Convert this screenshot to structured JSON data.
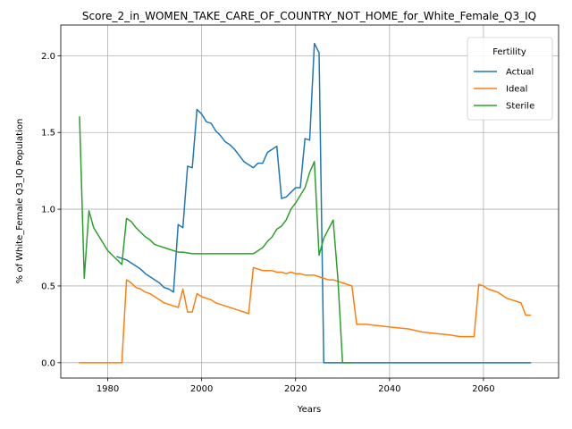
{
  "chart_data": {
    "type": "line",
    "title": "Score_2_in_WOMEN_TAKE_CARE_OF_COUNTRY_NOT_HOME_for_White_Female_Q3_IQ",
    "xlabel": "Years",
    "ylabel": "% of White_Female Q3_IQ Population",
    "xlim": [
      1970,
      2076
    ],
    "ylim": [
      -0.1,
      2.2
    ],
    "xticks": [
      1980,
      2000,
      2020,
      2040,
      2060
    ],
    "yticks": [
      0.0,
      0.5,
      1.0,
      1.5,
      2.0
    ],
    "xtick_labels": [
      "1980",
      "2000",
      "2020",
      "2040",
      "2060"
    ],
    "ytick_labels": [
      "0.0",
      "0.5",
      "1.0",
      "1.5",
      "2.0"
    ],
    "grid": true,
    "legend": {
      "title": "Fertility",
      "placement": "top-right"
    },
    "series": [
      {
        "name": "Actual",
        "color": "#1f77b4",
        "points": [
          [
            1982,
            0.69
          ],
          [
            1983,
            0.68
          ],
          [
            1984,
            0.67
          ],
          [
            1985,
            0.65
          ],
          [
            1986,
            0.63
          ],
          [
            1987,
            0.61
          ],
          [
            1988,
            0.58
          ],
          [
            1989,
            0.56
          ],
          [
            1990,
            0.54
          ],
          [
            1991,
            0.52
          ],
          [
            1992,
            0.49
          ],
          [
            1993,
            0.48
          ],
          [
            1994,
            0.46
          ],
          [
            1995,
            0.9
          ],
          [
            1996,
            0.88
          ],
          [
            1997,
            1.28
          ],
          [
            1998,
            1.27
          ],
          [
            1999,
            1.65
          ],
          [
            2000,
            1.62
          ],
          [
            2001,
            1.57
          ],
          [
            2002,
            1.56
          ],
          [
            2003,
            1.51
          ],
          [
            2004,
            1.48
          ],
          [
            2005,
            1.44
          ],
          [
            2006,
            1.42
          ],
          [
            2007,
            1.39
          ],
          [
            2008,
            1.35
          ],
          [
            2009,
            1.31
          ],
          [
            2010,
            1.29
          ],
          [
            2011,
            1.27
          ],
          [
            2012,
            1.3
          ],
          [
            2013,
            1.3
          ],
          [
            2014,
            1.37
          ],
          [
            2015,
            1.39
          ],
          [
            2016,
            1.41
          ],
          [
            2017,
            1.07
          ],
          [
            2018,
            1.08
          ],
          [
            2019,
            1.11
          ],
          [
            2020,
            1.14
          ],
          [
            2021,
            1.14
          ],
          [
            2022,
            1.46
          ],
          [
            2023,
            1.45
          ],
          [
            2024,
            2.08
          ],
          [
            2025,
            2.02
          ],
          [
            2026,
            0.0
          ],
          [
            2030,
            0.0
          ],
          [
            2040,
            0.0
          ],
          [
            2050,
            0.0
          ],
          [
            2060,
            0.0
          ],
          [
            2070,
            0.0
          ]
        ]
      },
      {
        "name": "Ideal",
        "color": "#ff7f0e",
        "points": [
          [
            1974,
            0.0
          ],
          [
            1978,
            0.0
          ],
          [
            1983,
            0.0
          ],
          [
            1984,
            0.54
          ],
          [
            1985,
            0.52
          ],
          [
            1986,
            0.49
          ],
          [
            1987,
            0.48
          ],
          [
            1988,
            0.46
          ],
          [
            1989,
            0.45
          ],
          [
            1990,
            0.43
          ],
          [
            1991,
            0.41
          ],
          [
            1992,
            0.39
          ],
          [
            1993,
            0.38
          ],
          [
            1994,
            0.37
          ],
          [
            1995,
            0.36
          ],
          [
            1996,
            0.48
          ],
          [
            1997,
            0.33
          ],
          [
            1998,
            0.33
          ],
          [
            1999,
            0.45
          ],
          [
            2000,
            0.43
          ],
          [
            2001,
            0.42
          ],
          [
            2002,
            0.41
          ],
          [
            2003,
            0.39
          ],
          [
            2004,
            0.38
          ],
          [
            2005,
            0.37
          ],
          [
            2006,
            0.36
          ],
          [
            2007,
            0.35
          ],
          [
            2008,
            0.34
          ],
          [
            2009,
            0.33
          ],
          [
            2010,
            0.32
          ],
          [
            2011,
            0.62
          ],
          [
            2012,
            0.61
          ],
          [
            2013,
            0.6
          ],
          [
            2014,
            0.6
          ],
          [
            2015,
            0.6
          ],
          [
            2016,
            0.59
          ],
          [
            2017,
            0.59
          ],
          [
            2018,
            0.58
          ],
          [
            2019,
            0.59
          ],
          [
            2020,
            0.58
          ],
          [
            2021,
            0.58
          ],
          [
            2022,
            0.57
          ],
          [
            2023,
            0.57
          ],
          [
            2024,
            0.57
          ],
          [
            2025,
            0.56
          ],
          [
            2026,
            0.55
          ],
          [
            2027,
            0.54
          ],
          [
            2028,
            0.54
          ],
          [
            2029,
            0.53
          ],
          [
            2030,
            0.52
          ],
          [
            2031,
            0.51
          ],
          [
            2032,
            0.5
          ],
          [
            2033,
            0.25
          ],
          [
            2035,
            0.25
          ],
          [
            2038,
            0.24
          ],
          [
            2041,
            0.23
          ],
          [
            2044,
            0.22
          ],
          [
            2047,
            0.2
          ],
          [
            2050,
            0.19
          ],
          [
            2053,
            0.18
          ],
          [
            2055,
            0.17
          ],
          [
            2058,
            0.17
          ],
          [
            2059,
            0.51
          ],
          [
            2060,
            0.5
          ],
          [
            2061,
            0.48
          ],
          [
            2062,
            0.47
          ],
          [
            2063,
            0.46
          ],
          [
            2064,
            0.44
          ],
          [
            2065,
            0.42
          ],
          [
            2066,
            0.41
          ],
          [
            2067,
            0.4
          ],
          [
            2068,
            0.39
          ],
          [
            2069,
            0.31
          ],
          [
            2070,
            0.31
          ]
        ]
      },
      {
        "name": "Sterile",
        "color": "#2ca02c",
        "points": [
          [
            1974,
            1.6
          ],
          [
            1975,
            0.55
          ],
          [
            1976,
            0.99
          ],
          [
            1977,
            0.88
          ],
          [
            1978,
            0.83
          ],
          [
            1979,
            0.78
          ],
          [
            1980,
            0.73
          ],
          [
            1981,
            0.7
          ],
          [
            1982,
            0.67
          ],
          [
            1983,
            0.64
          ],
          [
            1984,
            0.94
          ],
          [
            1985,
            0.92
          ],
          [
            1986,
            0.88
          ],
          [
            1987,
            0.85
          ],
          [
            1988,
            0.82
          ],
          [
            1989,
            0.8
          ],
          [
            1990,
            0.77
          ],
          [
            1991,
            0.76
          ],
          [
            1992,
            0.75
          ],
          [
            1993,
            0.74
          ],
          [
            1994,
            0.73
          ],
          [
            1995,
            0.72
          ],
          [
            1996,
            0.72
          ],
          [
            1998,
            0.71
          ],
          [
            2000,
            0.71
          ],
          [
            2005,
            0.71
          ],
          [
            2010,
            0.71
          ],
          [
            2011,
            0.71
          ],
          [
            2012,
            0.73
          ],
          [
            2013,
            0.75
          ],
          [
            2014,
            0.79
          ],
          [
            2015,
            0.82
          ],
          [
            2016,
            0.87
          ],
          [
            2017,
            0.89
          ],
          [
            2018,
            0.93
          ],
          [
            2019,
            1.0
          ],
          [
            2020,
            1.04
          ],
          [
            2021,
            1.09
          ],
          [
            2022,
            1.14
          ],
          [
            2023,
            1.24
          ],
          [
            2024,
            1.31
          ],
          [
            2025,
            0.7
          ],
          [
            2026,
            0.81
          ],
          [
            2027,
            0.87
          ],
          [
            2028,
            0.93
          ],
          [
            2029,
            0.55
          ],
          [
            2030,
            0.0
          ],
          [
            2031,
            0.0
          ],
          [
            2032,
            0.0
          ]
        ]
      }
    ]
  }
}
